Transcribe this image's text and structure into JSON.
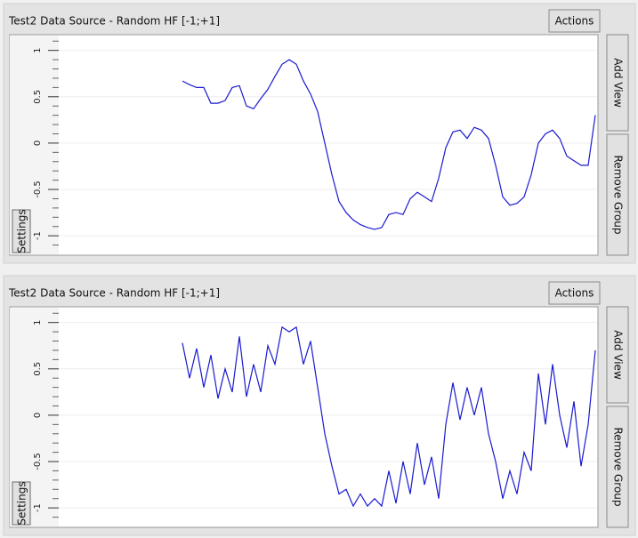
{
  "panels": [
    {
      "title": "Test2 Data Source - Random HF [-1;+1]",
      "actions": "Actions",
      "add_view": "Add View",
      "remove_group": "Remove Group",
      "settings": "Settings"
    },
    {
      "title": "Test2 Data Source - Random HF [-1;+1]",
      "actions": "Actions",
      "add_view": "Add View",
      "remove_group": "Remove Group",
      "settings": "Settings"
    }
  ],
  "chart_data": [
    {
      "type": "line",
      "color": "#1a1ad0",
      "ylim": [
        -1.2,
        1.16
      ],
      "yticks": [
        -1,
        -0.5,
        0,
        0.5,
        1
      ],
      "minor_yticks": [
        -1.1,
        -0.9,
        -0.8,
        -0.7,
        -0.6,
        -0.4,
        -0.3,
        -0.2,
        -0.1,
        0.1,
        0.2,
        0.3,
        0.4,
        0.6,
        0.7,
        0.8,
        0.9,
        1.1
      ],
      "grid": true,
      "values": [
        null,
        null,
        null,
        null,
        null,
        null,
        null,
        null,
        null,
        null,
        null,
        null,
        null,
        null,
        null,
        null,
        null,
        null,
        0.67,
        0.63,
        0.6,
        0.6,
        0.43,
        0.43,
        0.46,
        0.6,
        0.62,
        0.4,
        0.37,
        0.48,
        0.58,
        0.72,
        0.85,
        0.9,
        0.85,
        0.67,
        0.53,
        0.34,
        0,
        -0.34,
        -0.63,
        -0.75,
        -0.83,
        -0.88,
        -0.91,
        -0.93,
        -0.91,
        -0.77,
        -0.75,
        -0.77,
        -0.6,
        -0.53,
        -0.58,
        -0.63,
        -0.38,
        -0.05,
        0.12,
        0.14,
        0.05,
        0.17,
        0.14,
        0.05,
        -0.24,
        -0.58,
        -0.67,
        -0.65,
        -0.58,
        -0.34,
        0,
        0.1,
        0.14,
        0.05,
        -0.14,
        -0.19,
        -0.24,
        -0.24,
        0.3
      ]
    },
    {
      "type": "line",
      "color": "#1a1ad0",
      "ylim": [
        -1.2,
        1.16
      ],
      "yticks": [
        -1,
        -0.5,
        0,
        0.5,
        1
      ],
      "minor_yticks": [
        -1.1,
        -0.9,
        -0.8,
        -0.7,
        -0.6,
        -0.4,
        -0.3,
        -0.2,
        -0.1,
        0.1,
        0.2,
        0.3,
        0.4,
        0.6,
        0.7,
        0.8,
        0.9,
        1.1
      ],
      "grid": true,
      "values": [
        null,
        null,
        null,
        null,
        null,
        null,
        null,
        null,
        null,
        null,
        null,
        null,
        null,
        null,
        null,
        null,
        null,
        null,
        0.78,
        0.4,
        0.72,
        0.3,
        0.65,
        0.18,
        0.5,
        0.25,
        0.85,
        0.2,
        0.55,
        0.25,
        0.75,
        0.55,
        0.95,
        0.9,
        0.95,
        0.55,
        0.8,
        0.3,
        -0.2,
        -0.55,
        -0.85,
        -0.8,
        -0.98,
        -0.85,
        -0.98,
        -0.9,
        -0.98,
        -0.6,
        -0.95,
        -0.5,
        -0.85,
        -0.3,
        -0.75,
        -0.45,
        -0.9,
        -0.1,
        0.35,
        -0.05,
        0.3,
        0,
        0.3,
        -0.2,
        -0.5,
        -0.9,
        -0.6,
        -0.85,
        -0.4,
        -0.6,
        0.45,
        -0.1,
        0.55,
        0,
        -0.35,
        0.15,
        -0.55,
        -0.1,
        0.7
      ]
    }
  ]
}
